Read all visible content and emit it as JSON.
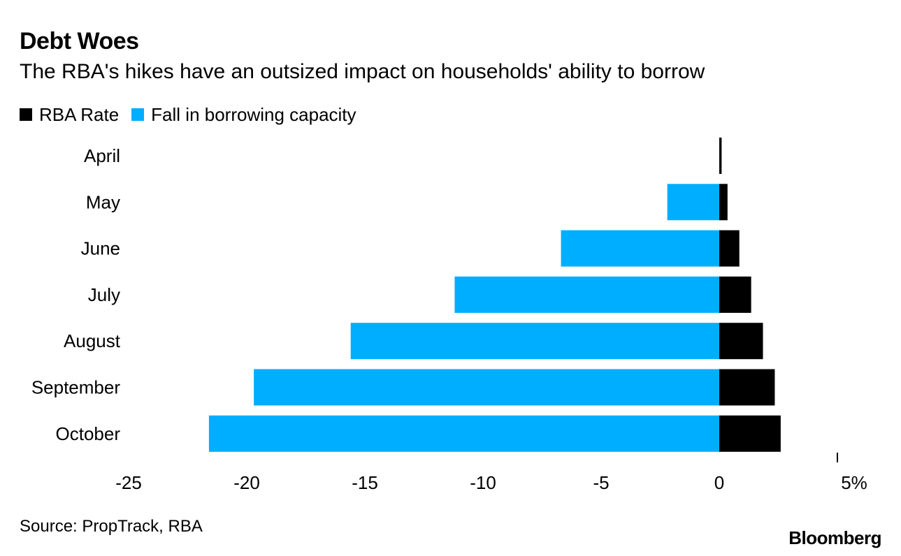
{
  "title": "Debt Woes",
  "subtitle": "The RBA's hikes have an outsized impact on households' ability to borrow",
  "source": "Source: PropTrack, RBA",
  "brand": "Bloomberg",
  "colors": {
    "rba_rate": "#000000",
    "fall_in_borrowing": "#00AEFF"
  },
  "chart_data": {
    "type": "bar",
    "orientation": "horizontal",
    "stacked": "diverging",
    "categories": [
      "April",
      "May",
      "June",
      "July",
      "August",
      "September",
      "October"
    ],
    "series": [
      {
        "name": "RBA Rate",
        "values": [
          0.1,
          0.35,
          0.85,
          1.35,
          1.85,
          2.35,
          2.6
        ]
      },
      {
        "name": "Fall in borrowing capacity",
        "values": [
          0,
          -2.2,
          -6.7,
          -11.2,
          -15.6,
          -19.7,
          -21.6
        ]
      }
    ],
    "xlim": [
      -25,
      5
    ],
    "xticks": [
      "-25",
      "-20",
      "-15",
      "-10",
      "-5",
      "0",
      "5%"
    ],
    "xlabel": "",
    "ylabel": "",
    "grid": false,
    "legend_position": "top-left"
  }
}
